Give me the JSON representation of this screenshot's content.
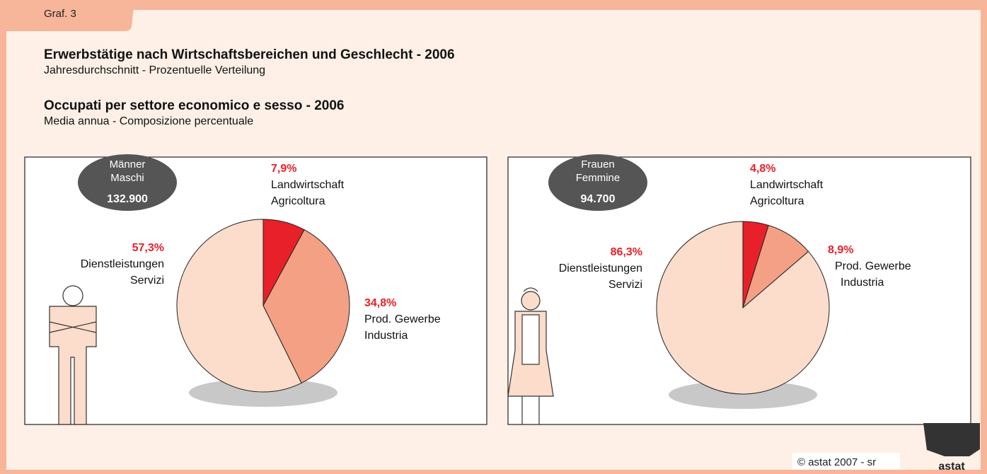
{
  "tab": "Graf. 3",
  "title_de": "Erwerbstätige nach Wirtschaftsbereichen und Geschlecht - 2006",
  "subtitle_de": "Jahresdurchschnitt - Prozentuelle Verteilung",
  "title_it": "Occupati per settore economico e sesso - 2006",
  "subtitle_it": "Media annua - Composizione percentuale",
  "footer": "© astat 2007 - sr",
  "logo": "astat",
  "chart_data": [
    {
      "type": "pie",
      "group": [
        "Männer",
        "Maschi"
      ],
      "total": "132.900",
      "categories": [
        "Landwirtschaft",
        "Prod. Gewerbe",
        "Dienstleistungen"
      ],
      "categories_it": [
        "Agricoltura",
        "Industria",
        "Servizi"
      ],
      "values": [
        7.9,
        34.8,
        57.3
      ],
      "value_labels": [
        "7,9%",
        "34,8%",
        "57,3%"
      ],
      "colors": [
        "#e8202a",
        "#f4a084",
        "#fcdccb"
      ]
    },
    {
      "type": "pie",
      "group": [
        "Frauen",
        "Femmine"
      ],
      "total": "94.700",
      "categories": [
        "Landwirtschaft",
        "Prod. Gewerbe",
        "Dienstleistungen"
      ],
      "categories_it": [
        "Agricoltura",
        "Industria",
        "Servizi"
      ],
      "values": [
        4.8,
        8.9,
        86.3
      ],
      "value_labels": [
        "4,8%",
        "8,9%",
        "86,3%"
      ],
      "colors": [
        "#e8202a",
        "#f4a084",
        "#fcdccb"
      ]
    }
  ]
}
